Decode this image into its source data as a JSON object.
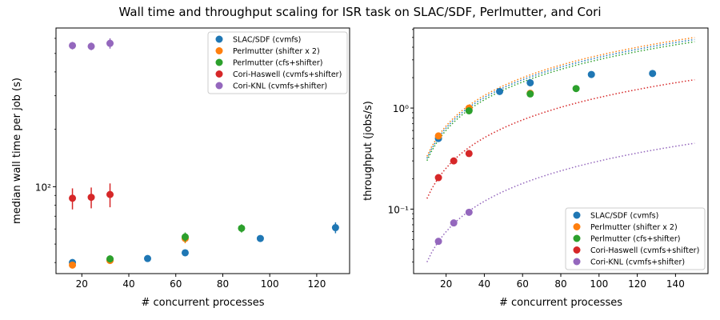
{
  "figure": {
    "title": "Wall time and throughput scaling for ISR task on SLAC/SDF, Perlmutter, and Cori"
  },
  "colors": {
    "SLAC/SDF (cvmfs)": "#1f77b4",
    "Perlmutter (shifter x 2)": "#ff7f0e",
    "Perlmutter (cfs+shifter)": "#2ca02c",
    "Cori-Haswell (cvmfs+shifter)": "#d62728",
    "Cori-KNL (cvmfs+shifter)": "#9467bd"
  },
  "chart_data": [
    {
      "type": "scatter",
      "xlabel": "# concurrent processes",
      "ylabel": "median wall time per job (s)",
      "yscale": "log",
      "xlim": [
        9,
        134
      ],
      "ylim": [
        35,
        680
      ],
      "x_ticks": [
        20,
        40,
        60,
        80,
        100,
        120
      ],
      "y_ticks": [
        {
          "value": 100,
          "label": "10²"
        }
      ],
      "legend_position": "top-right",
      "series": [
        {
          "name": "SLAC/SDF (cvmfs)",
          "points": [
            {
              "x": 16,
              "y": 40,
              "err": 1
            },
            {
              "x": 32,
              "y": 41.5,
              "err": 1
            },
            {
              "x": 48,
              "y": 42,
              "err": 0.8
            },
            {
              "x": 64,
              "y": 45,
              "err": 0.8
            },
            {
              "x": 96,
              "y": 53.5,
              "err": 1.5
            },
            {
              "x": 128,
              "y": 61,
              "err": 4
            }
          ]
        },
        {
          "name": "Perlmutter (shifter x 2)",
          "points": [
            {
              "x": 16,
              "y": 38.8,
              "err": 1.5
            },
            {
              "x": 32,
              "y": 41,
              "err": 1.5
            },
            {
              "x": 64,
              "y": 53.5,
              "err": 3
            }
          ]
        },
        {
          "name": "Perlmutter (cfs+shifter)",
          "points": [
            {
              "x": 32,
              "y": 41.8,
              "err": 1.8
            },
            {
              "x": 64,
              "y": 54.5,
              "err": 3
            },
            {
              "x": 88,
              "y": 60.5,
              "err": 3
            }
          ]
        },
        {
          "name": "Cori-Haswell (cvmfs+shifter)",
          "points": [
            {
              "x": 16,
              "y": 87,
              "err": 11
            },
            {
              "x": 24,
              "y": 88,
              "err": 11
            },
            {
              "x": 32,
              "y": 91,
              "err": 13
            }
          ]
        },
        {
          "name": "Cori-KNL (cvmfs+shifter)",
          "points": [
            {
              "x": 16,
              "y": 550,
              "err": 25
            },
            {
              "x": 24,
              "y": 545,
              "err": 25
            },
            {
              "x": 32,
              "y": 565,
              "err": 35
            }
          ]
        }
      ]
    },
    {
      "type": "scatter",
      "xlabel": "# concurrent processes",
      "ylabel": "throughput (jobs/s)",
      "yscale": "log",
      "xlim": [
        3,
        157
      ],
      "ylim": [
        0.023,
        6.2
      ],
      "x_ticks": [
        20,
        40,
        60,
        80,
        100,
        120,
        140
      ],
      "y_ticks": [
        {
          "value": 0.1,
          "label": "10⁻¹"
        },
        {
          "value": 1,
          "label": "10⁰"
        }
      ],
      "legend_position": "bottom-right",
      "fit_lines": {
        "style": "dotted",
        "x_range": [
          10,
          150
        ],
        "slopes": [
          {
            "series": "SLAC/SDF (cvmfs)",
            "slope": 0.0318
          },
          {
            "series": "Perlmutter (shifter x 2)",
            "slope": 0.0333
          },
          {
            "series": "Perlmutter (cfs+shifter)",
            "slope": 0.0302
          },
          {
            "series": "Cori-Haswell (cvmfs+shifter)",
            "slope": 0.01272
          },
          {
            "series": "Cori-KNL (cvmfs+shifter)",
            "slope": 0.00299
          }
        ]
      },
      "series": [
        {
          "name": "SLAC/SDF (cvmfs)",
          "points": [
            {
              "x": 16,
              "y": 0.5
            },
            {
              "x": 32,
              "y": 0.96
            },
            {
              "x": 48,
              "y": 1.46
            },
            {
              "x": 64,
              "y": 1.78
            },
            {
              "x": 96,
              "y": 2.15
            },
            {
              "x": 128,
              "y": 2.2
            }
          ]
        },
        {
          "name": "Perlmutter (shifter x 2)",
          "points": [
            {
              "x": 16,
              "y": 0.53
            },
            {
              "x": 32,
              "y": 1.0
            },
            {
              "x": 64,
              "y": 1.4
            }
          ]
        },
        {
          "name": "Perlmutter (cfs+shifter)",
          "points": [
            {
              "x": 32,
              "y": 0.94
            },
            {
              "x": 64,
              "y": 1.38
            },
            {
              "x": 88,
              "y": 1.56
            }
          ]
        },
        {
          "name": "Cori-Haswell (cvmfs+shifter)",
          "points": [
            {
              "x": 16,
              "y": 0.205
            },
            {
              "x": 24,
              "y": 0.3
            },
            {
              "x": 32,
              "y": 0.355
            }
          ]
        },
        {
          "name": "Cori-KNL (cvmfs+shifter)",
          "points": [
            {
              "x": 16,
              "y": 0.048
            },
            {
              "x": 24,
              "y": 0.073
            },
            {
              "x": 32,
              "y": 0.093
            }
          ]
        }
      ]
    }
  ]
}
